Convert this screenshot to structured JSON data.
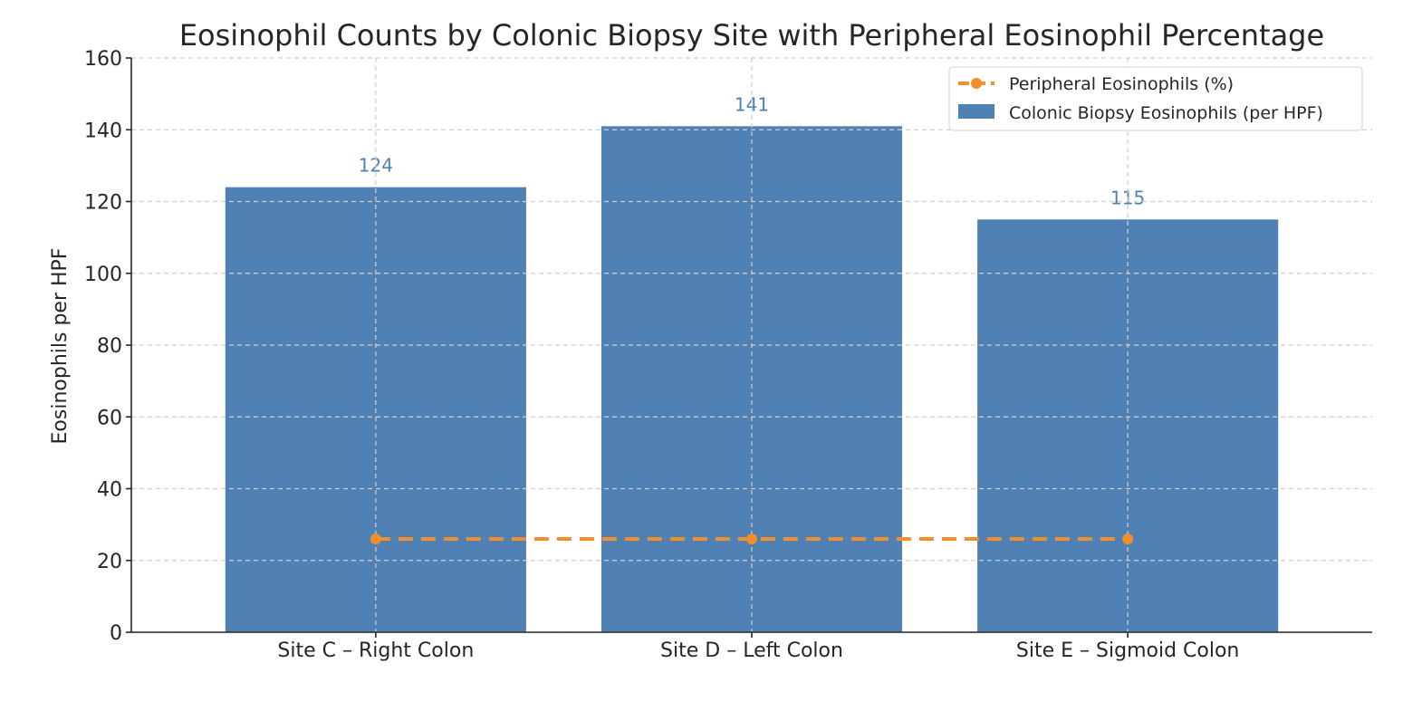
{
  "chart_data": {
    "type": "bar",
    "title": "Eosinophil Counts by Colonic Biopsy Site with Peripheral Eosinophil Percentage",
    "xlabel": "",
    "ylabel": "Eosinophils per HPF",
    "ylim": [
      0,
      160
    ],
    "yticks": [
      "0",
      "20",
      "40",
      "60",
      "80",
      "100",
      "120",
      "140",
      "160"
    ],
    "grid": true,
    "legend_position": "top-right",
    "categories": [
      "Site C – Right Colon",
      "Site D – Left Colon",
      "Site E – Sigmoid Colon"
    ],
    "series": [
      {
        "name": "Colonic Biopsy Eosinophils (per HPF)",
        "kind": "bar",
        "color": "#4f81b4",
        "values": [
          124,
          141,
          115
        ],
        "value_labels": [
          "124",
          "141",
          "115"
        ]
      },
      {
        "name": "Peripheral Eosinophils (%)",
        "kind": "line",
        "style": "dashed",
        "marker": "circle",
        "color": "#f28e2b",
        "values": [
          26,
          26,
          26
        ]
      }
    ],
    "legend_order": [
      "Peripheral Eosinophils (%)",
      "Colonic Biopsy Eosinophils (per HPF)"
    ]
  }
}
